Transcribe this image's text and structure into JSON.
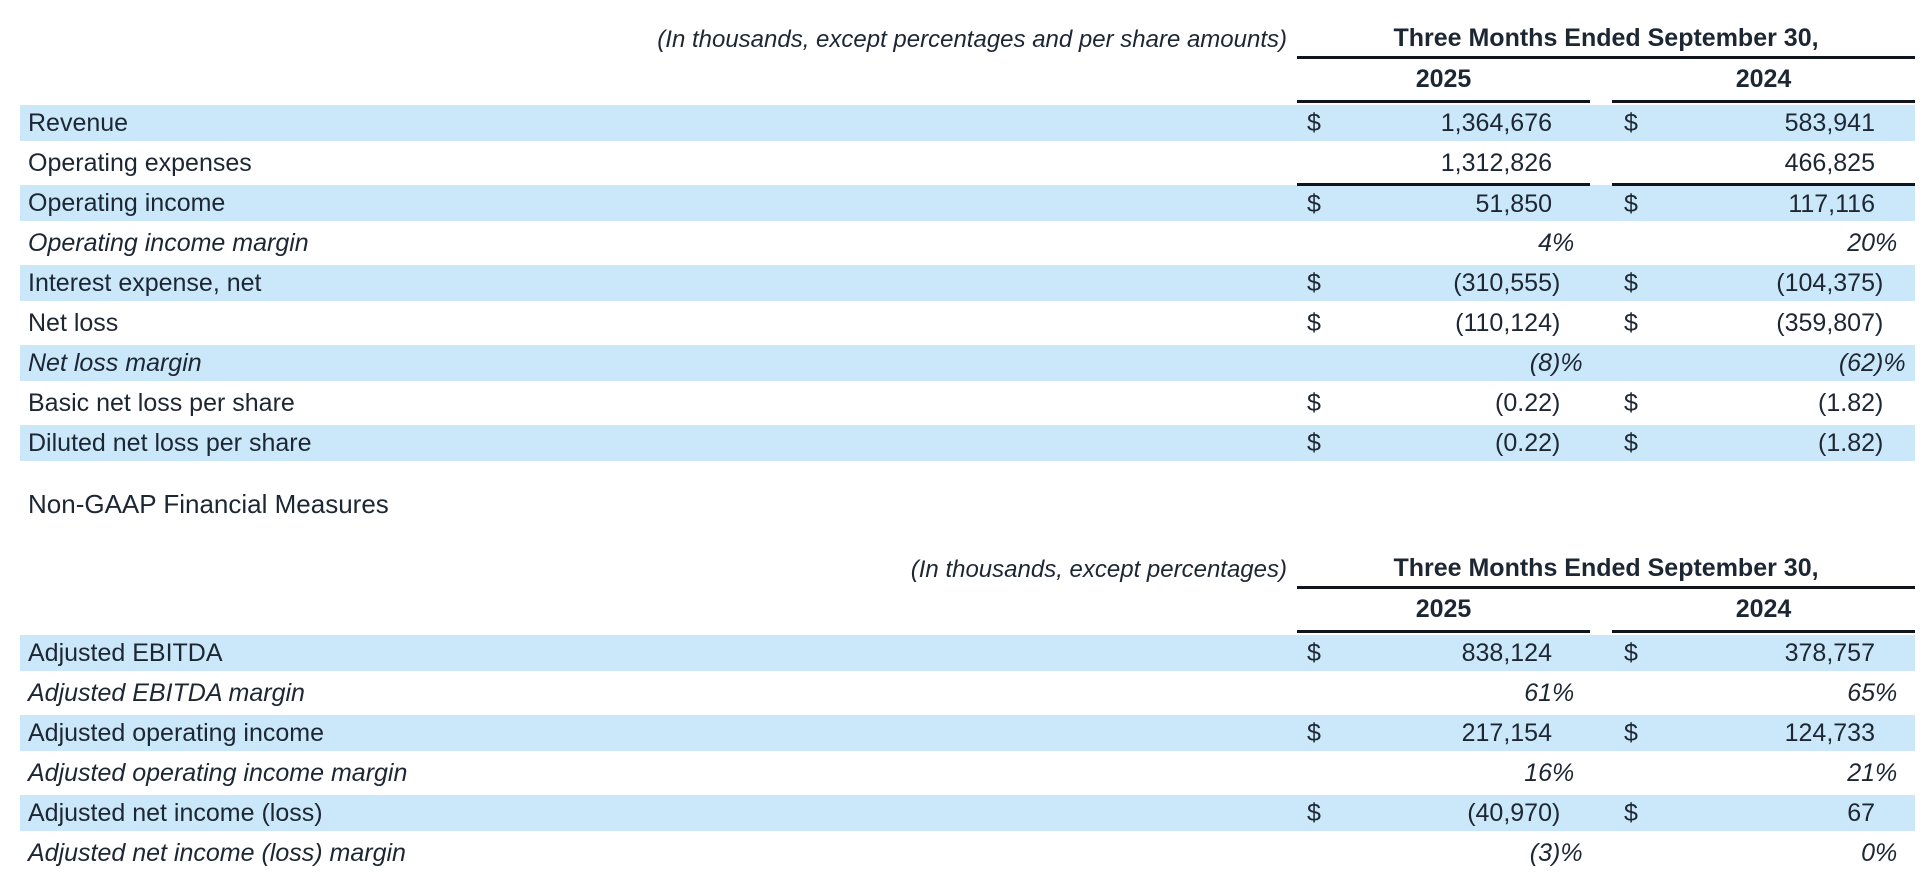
{
  "colors": {
    "stripe": "#cbe8fa",
    "text": "#1d2633",
    "line": "#10151d"
  },
  "section_heading": "Non-GAAP Financial Measures",
  "table1": {
    "note": "(In thousands, except percentages and per share amounts)",
    "period_header": "Three Months Ended September 30,",
    "years": [
      "2025",
      "2024"
    ],
    "rows": [
      {
        "label": "Revenue",
        "italic": false,
        "stripe": true,
        "border_top": false,
        "dollar": true,
        "v2025": "1,364,676",
        "v2024": "583,941"
      },
      {
        "label": "Operating expenses",
        "italic": false,
        "stripe": false,
        "border_top": false,
        "dollar": false,
        "v2025": "1,312,826",
        "v2024": "466,825"
      },
      {
        "label": "Operating income",
        "italic": false,
        "stripe": true,
        "border_top": true,
        "dollar": true,
        "v2025": "51,850",
        "v2024": "117,116"
      },
      {
        "label": "Operating income margin",
        "italic": true,
        "stripe": false,
        "border_top": false,
        "dollar": false,
        "v2025": "4%",
        "v2024": "20%"
      },
      {
        "label": "Interest expense, net",
        "italic": false,
        "stripe": true,
        "border_top": false,
        "dollar": true,
        "v2025": "(310,555)",
        "v2024": "(104,375)"
      },
      {
        "label": "Net loss",
        "italic": false,
        "stripe": false,
        "border_top": false,
        "dollar": true,
        "v2025": "(110,124)",
        "v2024": "(359,807)"
      },
      {
        "label": "Net loss margin",
        "italic": true,
        "stripe": true,
        "border_top": false,
        "dollar": false,
        "v2025": "(8)%",
        "v2024": "(62)%"
      },
      {
        "label": "Basic net loss per share",
        "italic": false,
        "stripe": false,
        "border_top": false,
        "dollar": true,
        "v2025": "(0.22)",
        "v2024": "(1.82)"
      },
      {
        "label": "Diluted net loss per share",
        "italic": false,
        "stripe": true,
        "border_top": false,
        "dollar": true,
        "v2025": "(0.22)",
        "v2024": "(1.82)"
      }
    ]
  },
  "table2": {
    "note": "(In thousands, except percentages)",
    "period_header": "Three Months Ended September 30,",
    "years": [
      "2025",
      "2024"
    ],
    "rows": [
      {
        "label": "Adjusted EBITDA",
        "italic": false,
        "stripe": true,
        "border_top": false,
        "dollar": true,
        "v2025": "838,124",
        "v2024": "378,757"
      },
      {
        "label": "Adjusted EBITDA margin",
        "italic": true,
        "stripe": false,
        "border_top": false,
        "dollar": false,
        "v2025": "61%",
        "v2024": "65%"
      },
      {
        "label": "Adjusted operating income",
        "italic": false,
        "stripe": true,
        "border_top": false,
        "dollar": true,
        "v2025": "217,154",
        "v2024": "124,733"
      },
      {
        "label": "Adjusted operating income margin",
        "italic": true,
        "stripe": false,
        "border_top": false,
        "dollar": false,
        "v2025": "16%",
        "v2024": "21%"
      },
      {
        "label": "Adjusted net income (loss)",
        "italic": false,
        "stripe": true,
        "border_top": false,
        "dollar": true,
        "v2025": "(40,970)",
        "v2024": "67"
      },
      {
        "label": "Adjusted net income (loss) margin",
        "italic": true,
        "stripe": false,
        "border_top": false,
        "dollar": false,
        "v2025": "(3)%",
        "v2024": "0%"
      }
    ]
  }
}
